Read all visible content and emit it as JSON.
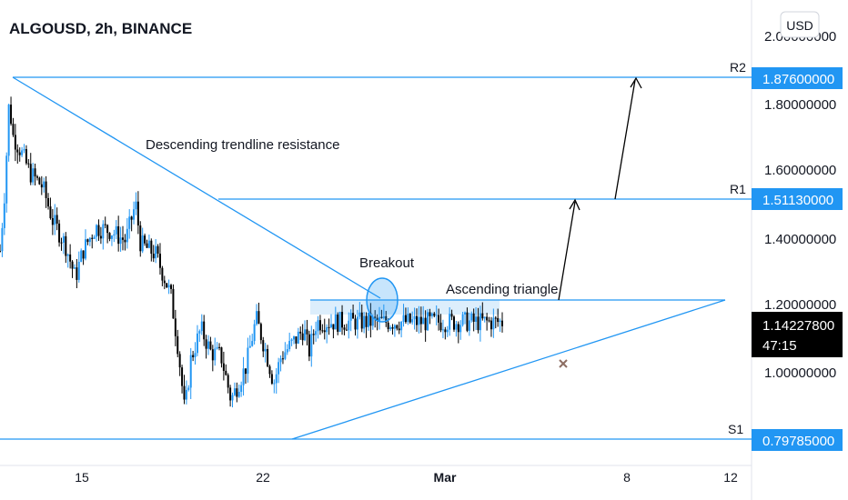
{
  "header": {
    "title": "ALGOUSD, 2h, BINANCE"
  },
  "currency_button": {
    "label": "USD"
  },
  "colors": {
    "line": "#2196f3",
    "candle_up": "#2196f3",
    "candle_down": "#000000",
    "label_bg": "#2196f3",
    "current_bg": "#000000",
    "cross": "#8d6e63",
    "highlight": "#dceefc"
  },
  "chart_data": {
    "type": "candlestick",
    "pair": "ALGOUSD",
    "timeframe": "2h",
    "exchange": "BINANCE",
    "currency": "USD",
    "yaxis": {
      "ticks": [
        "2.00000000",
        "1.80000000",
        "1.60000000",
        "1.40000000",
        "1.20000000",
        "1.00000000"
      ]
    },
    "xaxis": {
      "ticks": [
        "15",
        "22",
        "Mar",
        "8",
        "12"
      ]
    },
    "levels": [
      {
        "name": "R2",
        "price": "1.87600000"
      },
      {
        "name": "R1",
        "price": "1.51130000"
      },
      {
        "name": "S1",
        "price": "0.79785000"
      }
    ],
    "current_price": {
      "price": "1.14227800",
      "countdown": "47:15"
    },
    "annotations": [
      {
        "text": "Descending trendline resistance"
      },
      {
        "text": "Breakout"
      },
      {
        "text": "Ascending triangle"
      }
    ],
    "path_keypoints": [
      {
        "pos": 0.0,
        "price": 1.36
      },
      {
        "pos": 0.01,
        "price": 1.55
      },
      {
        "pos": 0.018,
        "price": 1.8
      },
      {
        "pos": 0.026,
        "price": 1.7
      },
      {
        "pos": 0.04,
        "price": 1.66
      },
      {
        "pos": 0.06,
        "price": 1.59
      },
      {
        "pos": 0.085,
        "price": 1.55
      },
      {
        "pos": 0.105,
        "price": 1.45
      },
      {
        "pos": 0.13,
        "price": 1.38
      },
      {
        "pos": 0.15,
        "price": 1.28
      },
      {
        "pos": 0.165,
        "price": 1.36
      },
      {
        "pos": 0.19,
        "price": 1.43
      },
      {
        "pos": 0.22,
        "price": 1.42
      },
      {
        "pos": 0.25,
        "price": 1.39
      },
      {
        "pos": 0.27,
        "price": 1.5
      },
      {
        "pos": 0.28,
        "price": 1.38
      },
      {
        "pos": 0.31,
        "price": 1.35
      },
      {
        "pos": 0.34,
        "price": 1.23
      },
      {
        "pos": 0.355,
        "price": 1.07
      },
      {
        "pos": 0.368,
        "price": 0.88
      },
      {
        "pos": 0.38,
        "price": 1.04
      },
      {
        "pos": 0.4,
        "price": 1.13
      },
      {
        "pos": 0.42,
        "price": 1.06
      },
      {
        "pos": 0.44,
        "price": 1.05
      },
      {
        "pos": 0.46,
        "price": 0.92
      },
      {
        "pos": 0.49,
        "price": 1.02
      },
      {
        "pos": 0.51,
        "price": 1.16
      },
      {
        "pos": 0.53,
        "price": 1.06
      },
      {
        "pos": 0.545,
        "price": 0.97
      },
      {
        "pos": 0.56,
        "price": 1.05
      },
      {
        "pos": 0.59,
        "price": 1.1
      },
      {
        "pos": 0.605,
        "price": 1.13
      },
      {
        "pos": 0.615,
        "price": 1.06
      },
      {
        "pos": 0.63,
        "price": 1.15
      }
    ]
  }
}
